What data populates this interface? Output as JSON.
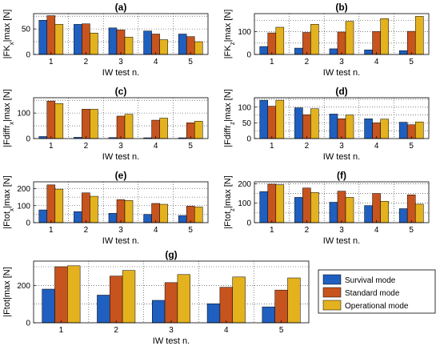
{
  "chart_data": [
    {
      "type": "bar",
      "panel": "(a)",
      "title": "(a)",
      "xlabel": "IW test n.",
      "ylabel": "|FK_x|max [N]",
      "categories": [
        "1",
        "2",
        "3",
        "4",
        "5"
      ],
      "ylim": [
        0,
        80
      ],
      "yticks": [
        0,
        50
      ],
      "series": [
        {
          "name": "Survival mode",
          "values": [
            67,
            59,
            52,
            46,
            40
          ]
        },
        {
          "name": "Standard mode",
          "values": [
            76,
            60,
            48,
            40,
            35
          ]
        },
        {
          "name": "Operational mode",
          "values": [
            59,
            42,
            34,
            29,
            25
          ]
        }
      ]
    },
    {
      "type": "bar",
      "panel": "(b)",
      "title": "(b)",
      "xlabel": "IW test n.",
      "ylabel": "|FK_z|max [N]",
      "categories": [
        "1",
        "2",
        "3",
        "4",
        "5"
      ],
      "ylim": [
        0,
        180
      ],
      "yticks": [
        0,
        100
      ],
      "series": [
        {
          "name": "Survival mode",
          "values": [
            35,
            28,
            25,
            20,
            17
          ]
        },
        {
          "name": "Standard mode",
          "values": [
            95,
            97,
            99,
            101,
            102
          ]
        },
        {
          "name": "Operational mode",
          "values": [
            120,
            133,
            146,
            158,
            168
          ]
        }
      ]
    },
    {
      "type": "bar",
      "panel": "(c)",
      "title": "(c)",
      "xlabel": "IW test n.",
      "ylabel": "|Fdiffr_x|max [N]",
      "categories": [
        "1",
        "2",
        "3",
        "4",
        "5"
      ],
      "ylim": [
        0,
        160
      ],
      "yticks": [
        0,
        100
      ],
      "series": [
        {
          "name": "Survival mode",
          "values": [
            8,
            5,
            4,
            3,
            3
          ]
        },
        {
          "name": "Standard mode",
          "values": [
            147,
            115,
            88,
            72,
            62
          ]
        },
        {
          "name": "Operational mode",
          "values": [
            137,
            115,
            95,
            80,
            68
          ]
        }
      ]
    },
    {
      "type": "bar",
      "panel": "(d)",
      "title": "(d)",
      "xlabel": "IW test n.",
      "ylabel": "|Fdiffr_z|max [N]",
      "categories": [
        "1",
        "2",
        "3",
        "4",
        "5"
      ],
      "ylim": [
        0,
        130
      ],
      "yticks": [
        0,
        50,
        100
      ],
      "series": [
        {
          "name": "Survival mode",
          "values": [
            122,
            98,
            78,
            63,
            52
          ]
        },
        {
          "name": "Standard mode",
          "values": [
            103,
            76,
            63,
            50,
            44
          ]
        },
        {
          "name": "Operational mode",
          "values": [
            122,
            95,
            75,
            62,
            53
          ]
        }
      ]
    },
    {
      "type": "bar",
      "panel": "(e)",
      "title": "(e)",
      "xlabel": "IW test n.",
      "ylabel": "|Ftot_x|max [N]",
      "categories": [
        "1",
        "2",
        "3",
        "4",
        "5"
      ],
      "ylim": [
        0,
        240
      ],
      "yticks": [
        0,
        100,
        200
      ],
      "series": [
        {
          "name": "Survival mode",
          "values": [
            75,
            65,
            55,
            48,
            42
          ]
        },
        {
          "name": "Standard mode",
          "values": [
            222,
            175,
            135,
            113,
            97
          ]
        },
        {
          "name": "Operational mode",
          "values": [
            197,
            155,
            130,
            108,
            92
          ]
        }
      ]
    },
    {
      "type": "bar",
      "panel": "(f)",
      "title": "(f)",
      "xlabel": "IW test n.",
      "ylabel": "|Ftot_z|max [N]",
      "categories": [
        "1",
        "2",
        "3",
        "4",
        "5"
      ],
      "ylim": [
        0,
        210
      ],
      "yticks": [
        0,
        100,
        200
      ],
      "series": [
        {
          "name": "Survival mode",
          "values": [
            160,
            130,
            105,
            88,
            72
          ]
        },
        {
          "name": "Standard mode",
          "values": [
            198,
            178,
            162,
            150,
            143
          ]
        },
        {
          "name": "Operational mode",
          "values": [
            195,
            155,
            130,
            110,
            95
          ]
        }
      ]
    },
    {
      "type": "bar",
      "panel": "(g)",
      "title": "(g)",
      "xlabel": "IW test n.",
      "ylabel": "|Ftot|max [N]",
      "categories": [
        "1",
        "2",
        "3",
        "4",
        "5"
      ],
      "ylim": [
        0,
        330
      ],
      "yticks": [
        0,
        200
      ],
      "series": [
        {
          "name": "Survival mode",
          "values": [
            180,
            148,
            120,
            102,
            85
          ]
        },
        {
          "name": "Standard mode",
          "values": [
            300,
            250,
            215,
            190,
            175
          ]
        },
        {
          "name": "Operational mode",
          "values": [
            305,
            280,
            258,
            245,
            240
          ]
        }
      ]
    }
  ],
  "legend": {
    "position": "right of panel (g)",
    "items": [
      {
        "label": "Survival mode",
        "color": "#1f5fbf"
      },
      {
        "label": "Standard mode",
        "color": "#c7541e"
      },
      {
        "label": "Operational mode",
        "color": "#e3b21e"
      }
    ]
  },
  "colors": {
    "survival": "#1f5fbf",
    "standard": "#c7541e",
    "operational": "#e3b21e"
  },
  "grid": "dotted"
}
